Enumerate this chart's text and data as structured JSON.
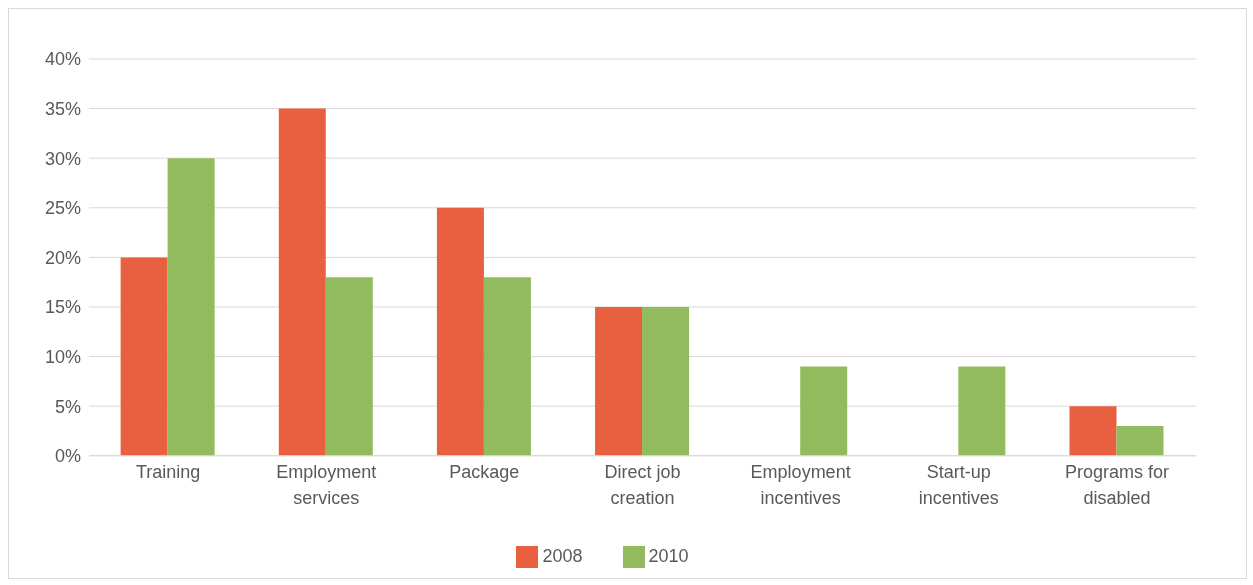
{
  "chart_data": {
    "type": "bar",
    "categories": [
      "Training",
      "Employment services",
      "Package",
      "Direct job creation",
      "Employment incentives",
      "Start-up incentives",
      "Programs for disabled"
    ],
    "series": [
      {
        "name": "2008",
        "color": "#e8603f",
        "values": [
          20,
          35,
          25,
          15,
          null,
          null,
          5
        ]
      },
      {
        "name": "2010",
        "color": "#91bb5d",
        "values": [
          30,
          18,
          18,
          15,
          9,
          9,
          3
        ]
      }
    ],
    "ylim": [
      0,
      40
    ],
    "yticks": [
      {
        "value": 0,
        "label": "0%"
      },
      {
        "value": 5,
        "label": "5%"
      },
      {
        "value": 10,
        "label": "10%"
      },
      {
        "value": 15,
        "label": "15%"
      },
      {
        "value": 20,
        "label": "20%"
      },
      {
        "value": 25,
        "label": "25%"
      },
      {
        "value": 30,
        "label": "30%"
      },
      {
        "value": 35,
        "label": "35%"
      },
      {
        "value": 40,
        "label": "40%"
      }
    ],
    "grid": "y",
    "legend": "bottom"
  }
}
